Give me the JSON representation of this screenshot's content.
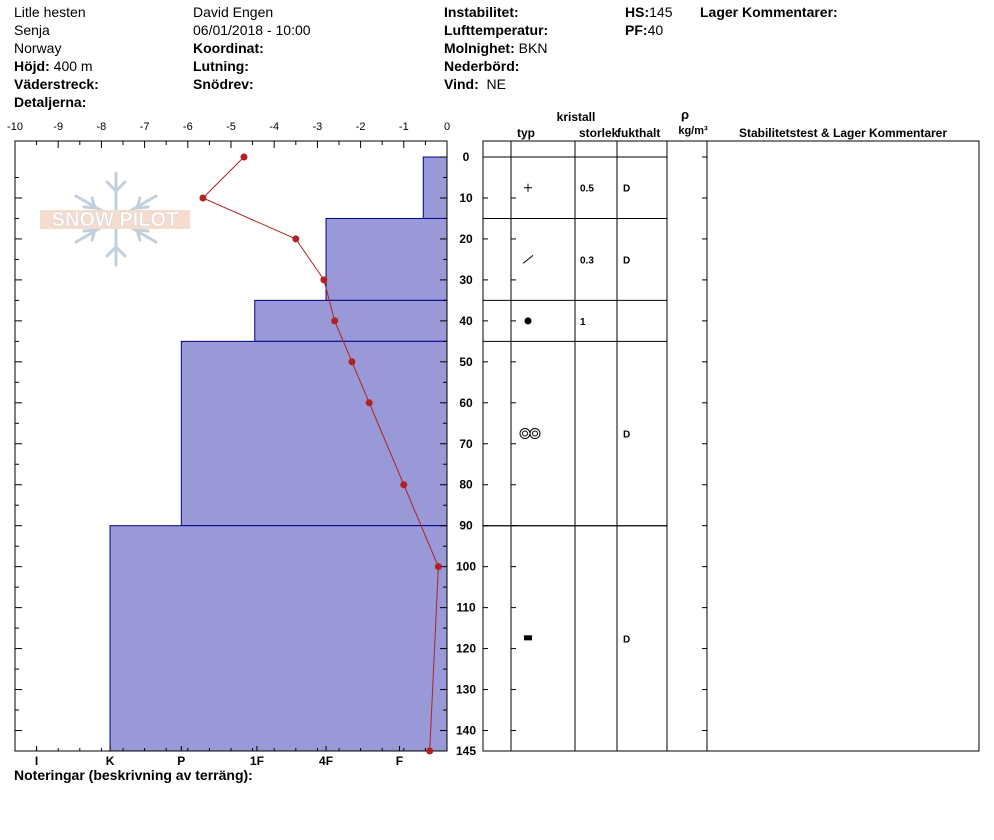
{
  "header": {
    "location": "Litle hesten",
    "region": "Senja",
    "country": "Norway",
    "elevation_label": "Höjd:",
    "elevation_value": "400 m",
    "aspect_label": "Väderstreck:",
    "details_label": "Detaljerna:",
    "observer": "David Engen",
    "datetime": "06/01/2018 - 10:00",
    "coordinate_label": "Koordinat:",
    "slope_label": "Lutning:",
    "snowdrift_label": "Snödrev:",
    "instability_label": "Instabilitet:",
    "airtemp_label": "Lufttemperatur:",
    "cloud_label": "Molnighet:",
    "cloud_value": "BKN",
    "precip_label": "Nederbörd:",
    "wind_label": "Vind:",
    "wind_value": "NE",
    "hs_label": "HS:",
    "hs_value": "145",
    "pf_label": "PF:",
    "pf_value": "40",
    "layer_comments_label": "Lager Kommentarer:"
  },
  "notes_label": "Noteringar (beskrivning av terräng):",
  "logo": {
    "text": "SNOW PILOT"
  },
  "table_headers": {
    "type": "typ",
    "crystal": "kristall",
    "size": "storlek",
    "moisture": "fukthalt",
    "rho": "ρ",
    "density_unit": "kg/m³",
    "stability": "Stabilitetstest & Lager Kommentarer"
  },
  "colors": {
    "layer_fill": "#9999d8",
    "layer_edge": "#00008b",
    "temp_line": "#b22222"
  },
  "chart_data": {
    "type": "snow-profile",
    "depth_axis": {
      "range": [
        0,
        145
      ],
      "ticks": [
        "0",
        "10",
        "20",
        "30",
        "40",
        "50",
        "60",
        "70",
        "80",
        "90",
        "100",
        "110",
        "120",
        "130",
        "140",
        "145"
      ]
    },
    "temperature_axis": {
      "range": [
        -10,
        0
      ],
      "ticks": [
        "-10",
        "-9",
        "-8",
        "-7",
        "-6",
        "-5",
        "-4",
        "-3",
        "-2",
        "-1",
        "0"
      ]
    },
    "hardness_axis": {
      "ticks": [
        "I",
        "K",
        "P",
        "1F",
        "4F",
        "F"
      ]
    },
    "hardness_layers": [
      {
        "top": 0,
        "bottom": 15,
        "temp_equiv": -0.55
      },
      {
        "top": 15,
        "bottom": 35,
        "temp_equiv": -2.8
      },
      {
        "top": 35,
        "bottom": 45,
        "temp_equiv": -4.45
      },
      {
        "top": 45,
        "bottom": 90,
        "temp_equiv": -6.15
      },
      {
        "top": 90,
        "bottom": 145,
        "temp_equiv": -7.8
      }
    ],
    "temperature_profile": [
      {
        "depth": 0,
        "temp": -4.7
      },
      {
        "depth": 10,
        "temp": -5.65
      },
      {
        "depth": 20,
        "temp": -3.5
      },
      {
        "depth": 30,
        "temp": -2.85
      },
      {
        "depth": 40,
        "temp": -2.6
      },
      {
        "depth": 50,
        "temp": -2.2
      },
      {
        "depth": 60,
        "temp": -1.8
      },
      {
        "depth": 80,
        "temp": -1.0
      },
      {
        "depth": 100,
        "temp": -0.2
      },
      {
        "depth": 145,
        "temp": -0.4
      }
    ],
    "layers": [
      {
        "top": 0,
        "bottom": 15,
        "mid": 7.5,
        "crystal": "plus",
        "size": "0.5",
        "moisture": "D"
      },
      {
        "top": 15,
        "bottom": 35,
        "mid": 25,
        "crystal": "slash",
        "size": "0.3",
        "moisture": "D"
      },
      {
        "top": 35,
        "bottom": 45,
        "mid": 40,
        "crystal": "dot",
        "size": "1",
        "moisture": ""
      },
      {
        "top": 45,
        "bottom": 90,
        "mid": 67.5,
        "crystal": "rounded-pair",
        "size": "",
        "moisture": "D"
      },
      {
        "top": 90,
        "bottom": 145,
        "mid": 117.5,
        "crystal": "square",
        "size": "",
        "moisture": "D"
      }
    ]
  }
}
